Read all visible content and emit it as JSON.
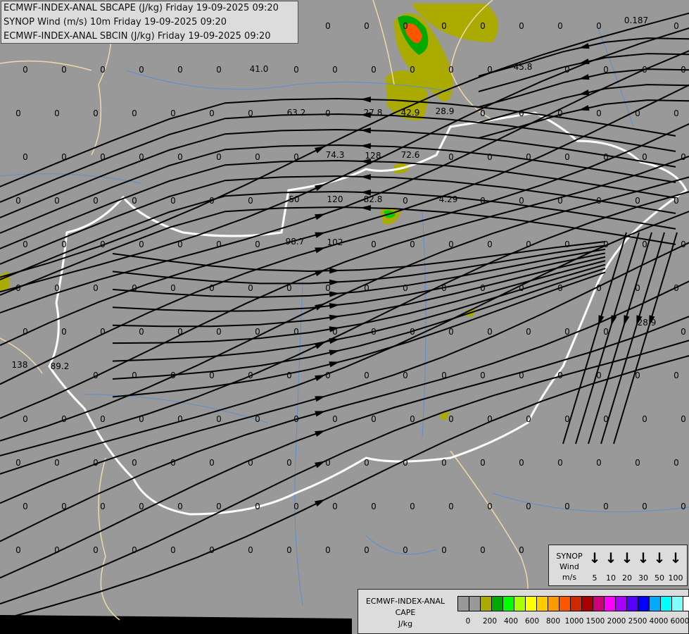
{
  "title_lines": [
    "ECMWF-INDEX-ANAL SBCAPE (J/kg) Friday 19-09-2025 09:20",
    "SYNOP Wind (m/s) 10m Friday 19-09-2025 09:20",
    "ECMWF-INDEX-ANAL SBCIN (J/kg) Friday 19-09-2025 09:20"
  ],
  "map_labels": [
    "0.187",
    "41.0",
    "45.8",
    "63.2",
    "27.8",
    "42.9",
    "28.9",
    "74.3",
    "128",
    "72.6",
    "120",
    "82.8",
    "4.29",
    "98.7",
    "102",
    "28.9",
    "138",
    "89.2",
    "50",
    "0"
  ],
  "colors": {
    "background": "#999999",
    "country_border": "#ffffff",
    "regional_border": "#f0d8a8",
    "rivers": "#5a8fd0",
    "streamlines": "#000000"
  },
  "wind_legend": {
    "title": [
      "SYNOP",
      "Wind",
      "m/s"
    ],
    "speeds": [
      "5",
      "10",
      "20",
      "30",
      "50",
      "100"
    ],
    "icon": "arrow-down-icon"
  },
  "cape_legend": {
    "title": [
      "ECMWF-INDEX-ANAL",
      "CAPE",
      "J/kg"
    ],
    "colors": [
      "#999999",
      "#999999",
      "#aaaa00",
      "#00aa00",
      "#00ff00",
      "#aaff00",
      "#ffff00",
      "#ffcc00",
      "#ff9900",
      "#ff5500",
      "#d02800",
      "#aa0000",
      "#cc0077",
      "#ff00ff",
      "#aa00ff",
      "#5500ff",
      "#0000ff",
      "#00aaff",
      "#00ffff",
      "#80ffff",
      "#ffffff"
    ],
    "ticks": [
      "0",
      "200",
      "400",
      "600",
      "800",
      "1000",
      "1500",
      "2000",
      "2500",
      "4000",
      "6000"
    ]
  }
}
